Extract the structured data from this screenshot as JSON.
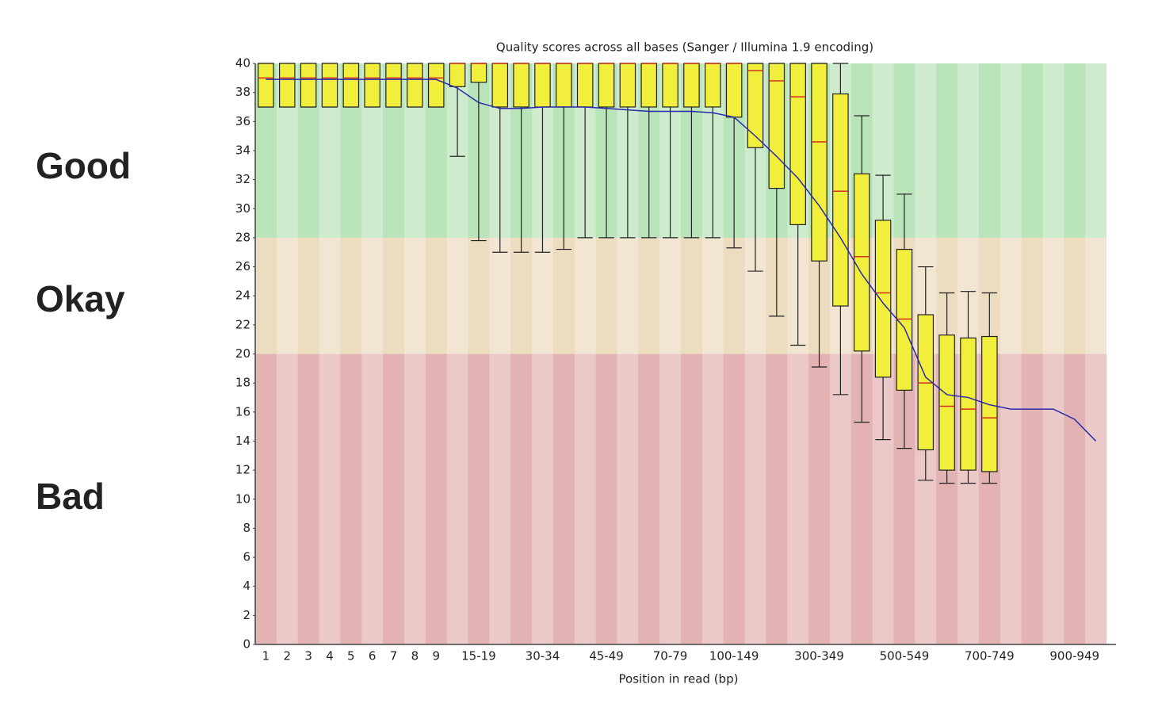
{
  "chart_data": {
    "type": "boxplot",
    "title": "Quality scores across all bases (Sanger / Illumina 1.9 encoding)",
    "x_label": "Position in read (bp)",
    "categories": [
      "1",
      "2",
      "3",
      "4",
      "5",
      "6",
      "7",
      "8",
      "9",
      null,
      "15-19",
      null,
      null,
      "30-34",
      null,
      null,
      "45-49",
      null,
      null,
      "70-79",
      null,
      null,
      "100-149",
      null,
      null,
      null,
      "300-349",
      null,
      null,
      null,
      "500-549",
      null,
      null,
      null,
      "700-749",
      null,
      null,
      null,
      "900-949",
      null
    ],
    "lower_whisker": [
      37,
      37,
      37,
      37,
      37,
      37,
      37,
      37,
      37,
      33.6,
      27.8,
      27,
      27,
      27,
      27.2,
      28,
      28,
      28,
      28,
      28,
      28,
      28,
      27.3,
      25.7,
      22.6,
      20.6,
      19.1,
      17.2,
      15.3,
      14.1,
      13.5,
      11.3,
      11.1,
      11.1,
      11.1,
      null,
      null,
      null,
      null,
      null
    ],
    "q1": [
      37,
      37,
      37,
      37,
      37,
      37,
      37,
      37,
      37,
      38.4,
      38.7,
      37,
      37,
      37,
      37,
      37,
      37,
      37,
      37,
      37,
      37,
      37,
      36.3,
      34.2,
      31.4,
      28.9,
      26.4,
      23.3,
      20.2,
      18.4,
      17.5,
      13.4,
      12,
      12,
      11.9,
      null,
      null,
      null,
      null,
      null
    ],
    "median": [
      39,
      39,
      39,
      39,
      39,
      39,
      39,
      39,
      39,
      40,
      40,
      40,
      40,
      40,
      40,
      40,
      40,
      40,
      40,
      40,
      40,
      40,
      40,
      39.5,
      38.8,
      37.7,
      34.6,
      31.2,
      26.7,
      24.2,
      22.4,
      18,
      16.4,
      16.2,
      15.6,
      null,
      null,
      null,
      null,
      null
    ],
    "q3": [
      40,
      40,
      40,
      40,
      40,
      40,
      40,
      40,
      40,
      40,
      40,
      40,
      40,
      40,
      40,
      40,
      40,
      40,
      40,
      40,
      40,
      40,
      40,
      40,
      40,
      40,
      40,
      37.9,
      32.4,
      29.2,
      27.2,
      22.7,
      21.3,
      21.1,
      21.2,
      null,
      null,
      null,
      null,
      null
    ],
    "upper_whisker": [
      40,
      40,
      40,
      40,
      40,
      40,
      40,
      40,
      40,
      40,
      40,
      40,
      40,
      40,
      40,
      40,
      40,
      40,
      40,
      40,
      40,
      40,
      40,
      40,
      40,
      40,
      40,
      40,
      36.4,
      32.3,
      31,
      26,
      24.2,
      24.3,
      24.2,
      null,
      null,
      null,
      null,
      null
    ],
    "mean": [
      38.9,
      38.9,
      38.9,
      38.9,
      38.9,
      38.9,
      38.9,
      38.9,
      38.9,
      38.3,
      37.3,
      36.9,
      36.9,
      37,
      37,
      37,
      36.9,
      36.8,
      36.7,
      36.7,
      36.7,
      36.6,
      36.3,
      35,
      33.6,
      32.1,
      30.2,
      28,
      25.5,
      23.5,
      21.8,
      18.4,
      17.2,
      17,
      16.5,
      16.2,
      16.2,
      16.2,
      15.5,
      14
    ],
    "box_color": "#f2ee3c",
    "median_color": "#d03020",
    "mean_color": "#2a2aa8",
    "ylim": [
      0,
      40
    ],
    "yticks": [
      0,
      2,
      4,
      6,
      8,
      10,
      12,
      14,
      16,
      18,
      20,
      22,
      24,
      26,
      28,
      30,
      32,
      34,
      36,
      38,
      40
    ],
    "zones": [
      {
        "label": "Good",
        "from": 28,
        "to": 40,
        "color": "#b9e3b9",
        "label_color": "#5a9e5a"
      },
      {
        "label": "Okay",
        "from": 20,
        "to": 28,
        "color": "#ecdcc0",
        "label_color": "#c9c23e"
      },
      {
        "label": "Bad",
        "from": 0,
        "to": 20,
        "color": "#e3b2b2",
        "label_color": "#c94a40"
      }
    ]
  }
}
